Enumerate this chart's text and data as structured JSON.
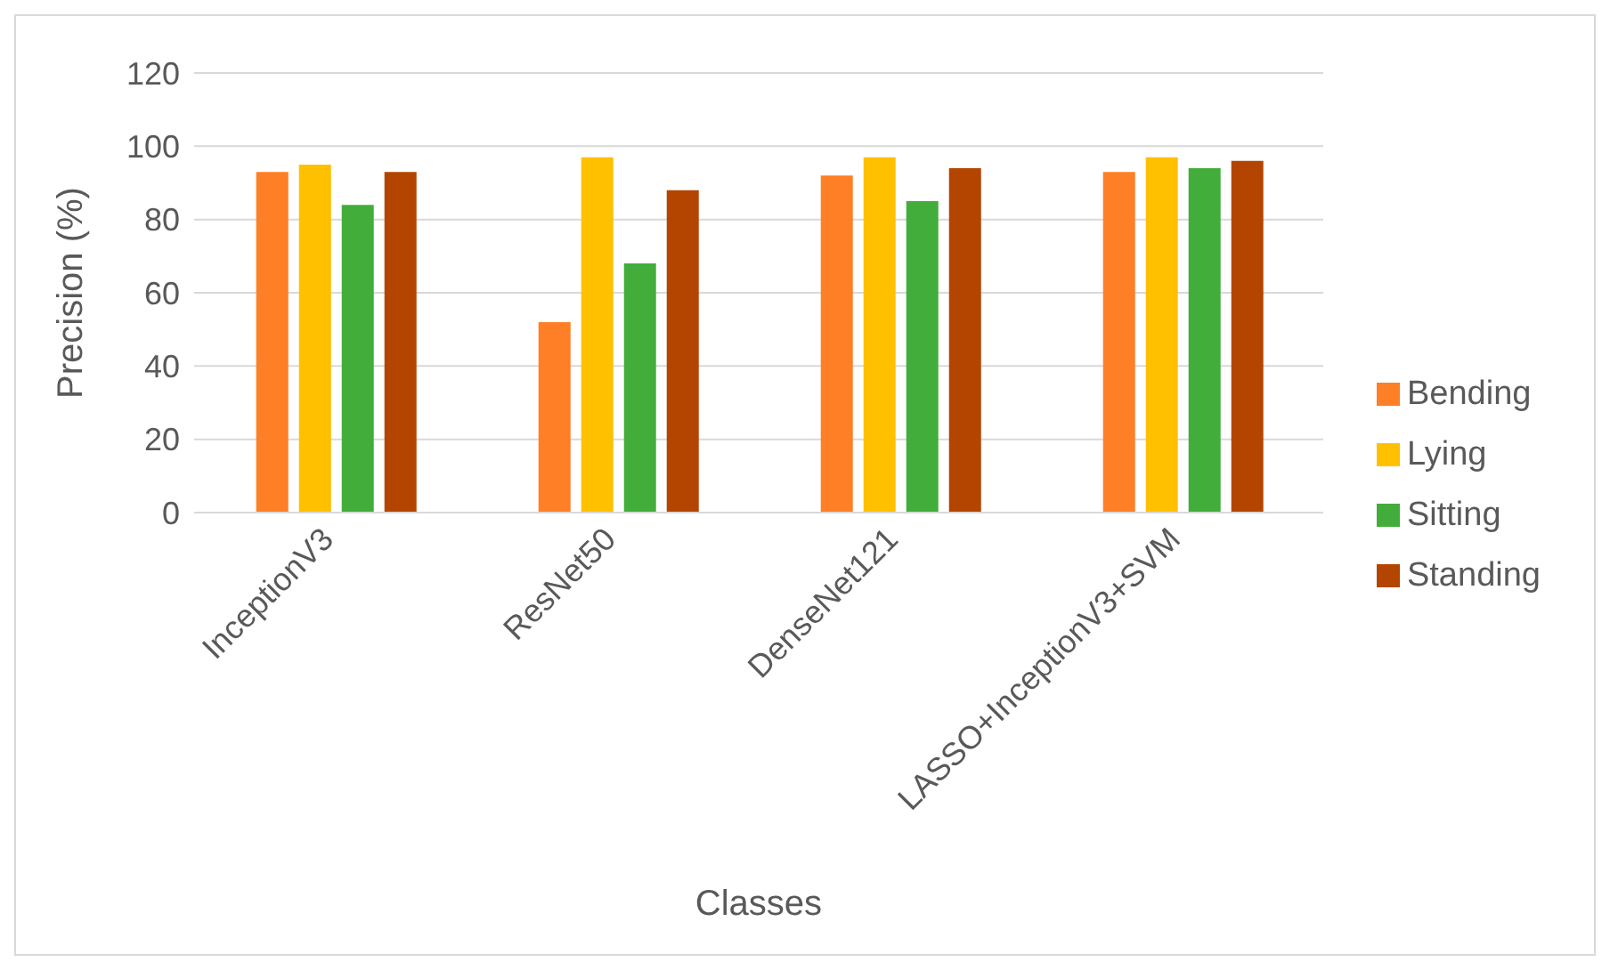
{
  "chart_data": {
    "type": "bar",
    "xlabel": "Classes",
    "ylabel": "Precision (%)",
    "categories": [
      "InceptionV3",
      "ResNet50",
      "DenseNet121",
      "LASSO+InceptionV3+SVM"
    ],
    "series": [
      {
        "name": "Bending",
        "color": "#fe7f26",
        "values": [
          93,
          52,
          92,
          93
        ]
      },
      {
        "name": "Lying",
        "color": "#ffc000",
        "values": [
          95,
          97,
          97,
          97
        ]
      },
      {
        "name": "Sitting",
        "color": "#43ad3b",
        "values": [
          84,
          68,
          85,
          94
        ]
      },
      {
        "name": "Standing",
        "color": "#b34500",
        "values": [
          93,
          88,
          94,
          96
        ]
      }
    ],
    "ylim": [
      0,
      120
    ],
    "yticks": [
      0,
      20,
      40,
      60,
      80,
      100,
      120
    ],
    "grid": "y",
    "legend": "right"
  }
}
